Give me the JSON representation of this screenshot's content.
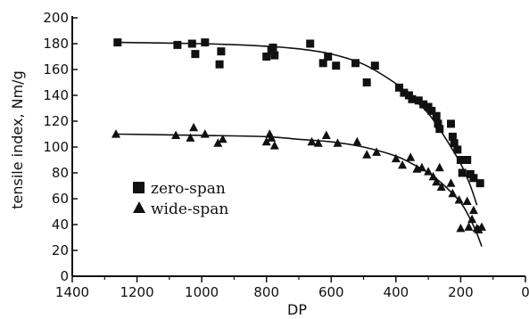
{
  "chart_data": {
    "type": "scatter",
    "xlabel": "DP",
    "ylabel": "tensile index, Nm/g",
    "xlim": [
      0,
      1400
    ],
    "ylim": [
      0,
      200
    ],
    "x_reversed": true,
    "x_ticks": [
      1400,
      1200,
      1000,
      800,
      600,
      400,
      200,
      0
    ],
    "y_ticks": [
      0,
      20,
      40,
      60,
      80,
      100,
      120,
      140,
      160,
      180,
      200
    ],
    "grid": false,
    "legend_position": "lower-left",
    "colors": {
      "ink": "#111111",
      "background": "#ffffff"
    },
    "series": [
      {
        "name": "zero-span",
        "marker": "square",
        "points": [
          [
            1260,
            181
          ],
          [
            1075,
            179
          ],
          [
            1030,
            180
          ],
          [
            1020,
            172
          ],
          [
            990,
            181
          ],
          [
            945,
            164
          ],
          [
            940,
            174
          ],
          [
            800,
            170
          ],
          [
            785,
            175
          ],
          [
            780,
            177
          ],
          [
            775,
            171
          ],
          [
            665,
            180
          ],
          [
            625,
            165
          ],
          [
            610,
            170
          ],
          [
            585,
            163
          ],
          [
            525,
            165
          ],
          [
            490,
            150
          ],
          [
            465,
            163
          ],
          [
            390,
            146
          ],
          [
            375,
            142
          ],
          [
            360,
            140
          ],
          [
            350,
            137
          ],
          [
            330,
            136
          ],
          [
            315,
            133
          ],
          [
            300,
            131
          ],
          [
            290,
            128
          ],
          [
            275,
            124
          ],
          [
            270,
            118
          ],
          [
            265,
            114
          ],
          [
            230,
            118
          ],
          [
            225,
            108
          ],
          [
            220,
            103
          ],
          [
            210,
            98
          ],
          [
            200,
            90
          ],
          [
            195,
            80
          ],
          [
            180,
            90
          ],
          [
            170,
            79
          ],
          [
            160,
            76
          ],
          [
            140,
            72
          ]
        ],
        "fit": [
          [
            1260,
            181
          ],
          [
            1000,
            180
          ],
          [
            800,
            178
          ],
          [
            700,
            176
          ],
          [
            600,
            172
          ],
          [
            500,
            164
          ],
          [
            400,
            149
          ],
          [
            350,
            138
          ],
          [
            300,
            126
          ],
          [
            250,
            108
          ],
          [
            200,
            87
          ],
          [
            170,
            70
          ],
          [
            150,
            55
          ]
        ]
      },
      {
        "name": "wide-span",
        "marker": "triangle",
        "points": [
          [
            1265,
            110
          ],
          [
            1080,
            109
          ],
          [
            1035,
            107
          ],
          [
            1025,
            115
          ],
          [
            990,
            110
          ],
          [
            950,
            103
          ],
          [
            935,
            106
          ],
          [
            800,
            104
          ],
          [
            790,
            110
          ],
          [
            785,
            107
          ],
          [
            775,
            101
          ],
          [
            660,
            104
          ],
          [
            640,
            103
          ],
          [
            615,
            109
          ],
          [
            580,
            103
          ],
          [
            520,
            104
          ],
          [
            490,
            94
          ],
          [
            460,
            96
          ],
          [
            400,
            91
          ],
          [
            380,
            86
          ],
          [
            355,
            92
          ],
          [
            335,
            83
          ],
          [
            320,
            84
          ],
          [
            300,
            81
          ],
          [
            285,
            77
          ],
          [
            275,
            73
          ],
          [
            265,
            84
          ],
          [
            260,
            69
          ],
          [
            230,
            72
          ],
          [
            225,
            64
          ],
          [
            205,
            59
          ],
          [
            200,
            37
          ],
          [
            180,
            58
          ],
          [
            175,
            38
          ],
          [
            165,
            44
          ],
          [
            160,
            51
          ],
          [
            150,
            37
          ],
          [
            145,
            36
          ],
          [
            135,
            38
          ]
        ],
        "fit": [
          [
            1260,
            110
          ],
          [
            1000,
            109
          ],
          [
            800,
            108
          ],
          [
            700,
            106
          ],
          [
            600,
            104
          ],
          [
            500,
            100
          ],
          [
            400,
            93
          ],
          [
            350,
            87
          ],
          [
            300,
            80
          ],
          [
            250,
            70
          ],
          [
            200,
            57
          ],
          [
            170,
            44
          ],
          [
            150,
            33
          ],
          [
            135,
            23
          ]
        ]
      }
    ]
  }
}
